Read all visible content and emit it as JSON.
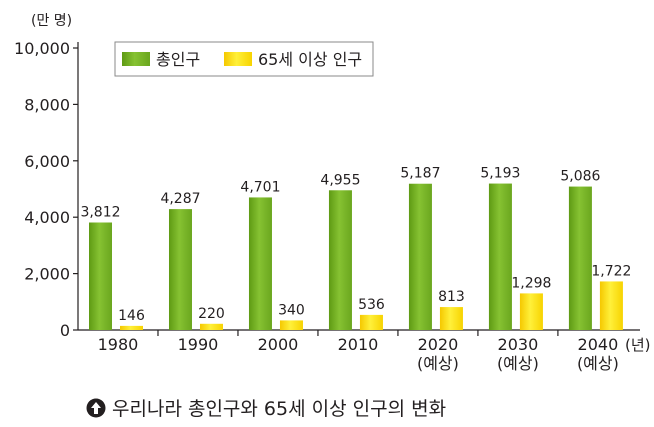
{
  "unit_label": "(만 명)",
  "caption": "우리나라 총인구와 65세 이상 인구의 변화",
  "colors": {
    "total_bar": "#7ab52a",
    "elderly_bar": "#ffe11e",
    "axis": "#231f20",
    "text": "#231f20"
  },
  "chart_data": {
    "type": "bar",
    "categories": [
      "1980",
      "1990",
      "2000",
      "2010",
      "2020\n(예상)",
      "2030\n(예상)",
      "2040\n(예상)"
    ],
    "x_unit": "(년)",
    "ylim": [
      0,
      10000
    ],
    "yticks": [
      "0",
      "2,000",
      "4,000",
      "6,000",
      "8,000",
      "10,000"
    ],
    "ytick_values": [
      0,
      2000,
      4000,
      6000,
      8000,
      10000
    ],
    "grid": false,
    "legend_position": "top-left",
    "series": [
      {
        "name": "총인구",
        "values": [
          3812,
          4287,
          4701,
          4955,
          5187,
          5193,
          5086
        ],
        "labels": [
          "3,812",
          "4,287",
          "4,701",
          "4,955",
          "5,187",
          "5,193",
          "5,086"
        ]
      },
      {
        "name": "65세 이상 인구",
        "values": [
          146,
          220,
          340,
          536,
          813,
          1298,
          1722
        ],
        "labels": [
          "146",
          "220",
          "340",
          "536",
          "813",
          "1,298",
          "1,722"
        ]
      }
    ]
  }
}
